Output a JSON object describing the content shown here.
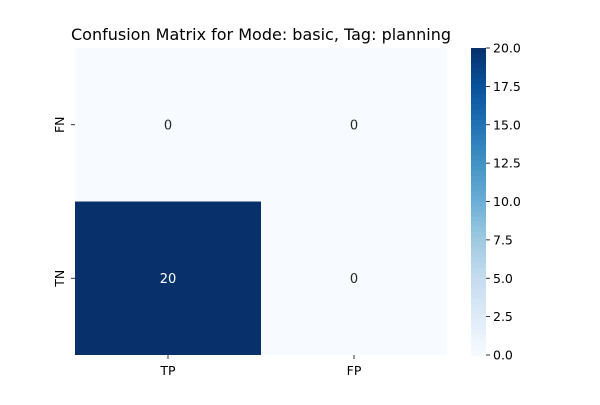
{
  "chart_data": {
    "type": "heatmap",
    "title": "Confusion Matrix for Mode: basic, Tag: planning",
    "xlabel": "",
    "ylabel": "",
    "x_categories": [
      "TP",
      "FP"
    ],
    "y_categories": [
      "FN",
      "TN"
    ],
    "values": [
      [
        0,
        0
      ],
      [
        20,
        0
      ]
    ],
    "annotations": [
      [
        "0",
        "0"
      ],
      [
        "20",
        "0"
      ]
    ],
    "colorbar": {
      "range": [
        0.0,
        20.0
      ],
      "ticks": [
        "0.0",
        "2.5",
        "5.0",
        "7.5",
        "10.0",
        "12.5",
        "15.0",
        "17.5",
        "20.0"
      ],
      "colormap": "Blues",
      "low_color": "#f7fbff",
      "high_color": "#08306b"
    },
    "grid": false
  }
}
